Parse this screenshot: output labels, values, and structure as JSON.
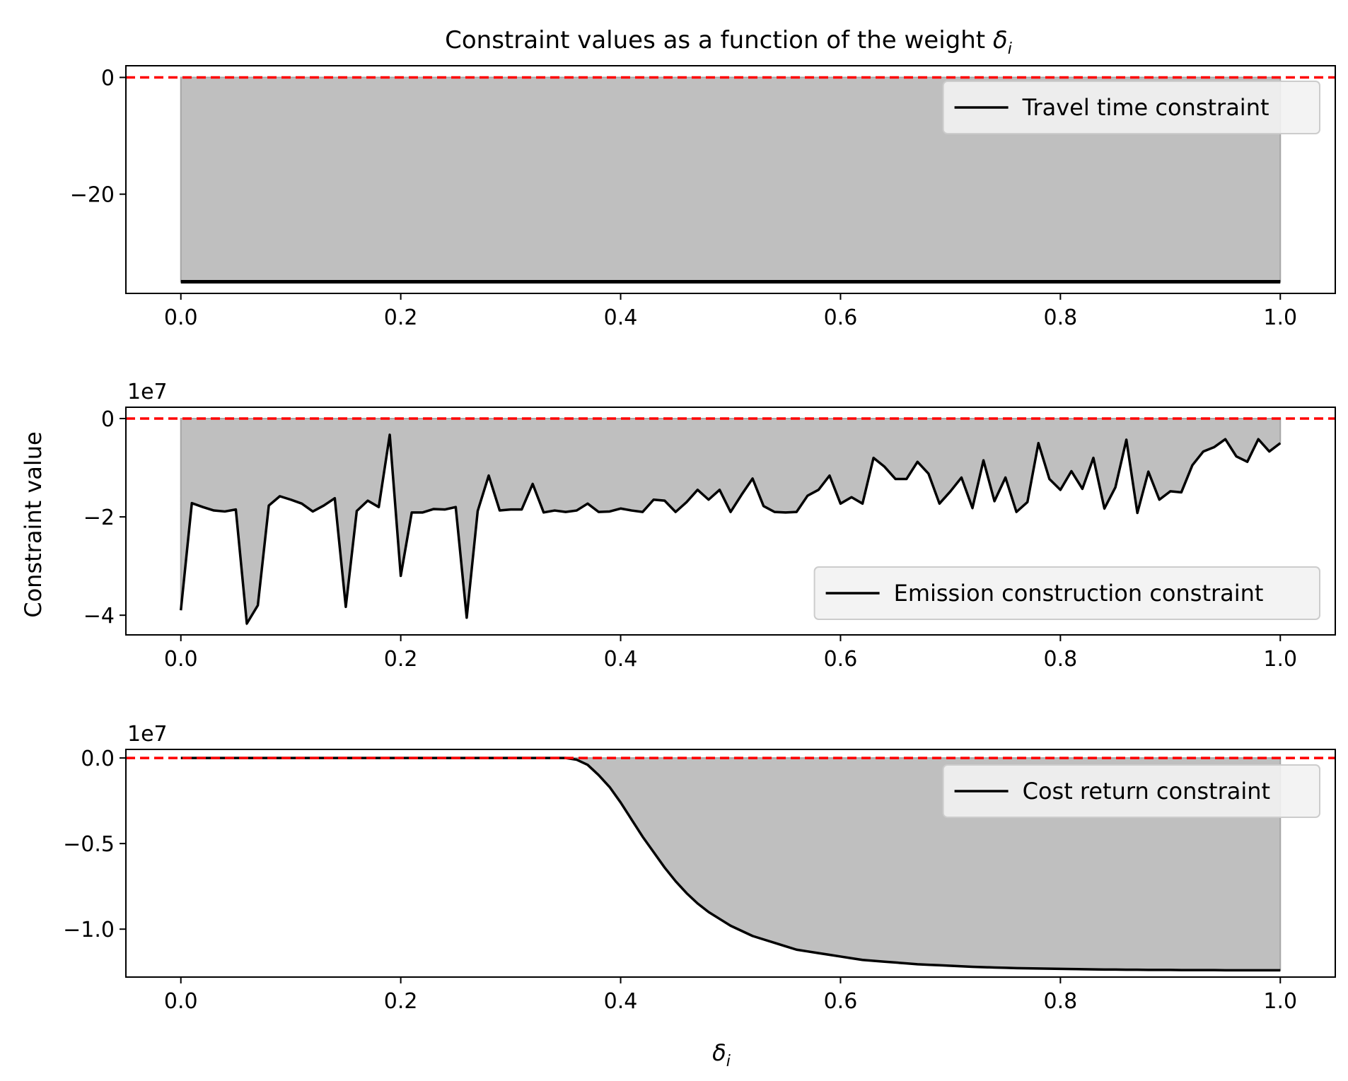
{
  "figure": {
    "title": "Constraint values as a function of the weight δi",
    "title_main": "Constraint values as a function of the weight ",
    "title_symbol": "δ",
    "title_subscript": "i",
    "ylabel": "Constraint value",
    "xlabel_symbol": "δ",
    "xlabel_subscript": "i"
  },
  "colors": {
    "line": "#000000",
    "fill": "#bfbfbf",
    "threshold": "#ff0000",
    "legend_bg": "#f2f2f2",
    "legend_border": "#cccccc"
  },
  "chart_data": [
    {
      "type": "line",
      "name": "Travel time constraint",
      "legend": "Travel time constraint",
      "legend_loc": "upper right",
      "fill_to_zero": true,
      "threshold_line": 0,
      "threshold_style": "dashed red",
      "xlim": [
        -0.05,
        1.05
      ],
      "ylim": [
        -37,
        2
      ],
      "xticks": [
        0.0,
        0.2,
        0.4,
        0.6,
        0.8,
        1.0
      ],
      "xtick_labels": [
        "0.0",
        "0.2",
        "0.4",
        "0.6",
        "0.8",
        "1.0"
      ],
      "yticks": [
        0,
        -20
      ],
      "ytick_labels": [
        "0",
        "−20"
      ],
      "offset_text": "",
      "x_start": 0.0,
      "x_step": 0.01,
      "values": [
        -35,
        -35,
        -35,
        -35,
        -35,
        -35,
        -35,
        -35,
        -35,
        -35,
        -35,
        -35,
        -35,
        -35,
        -35,
        -35,
        -35,
        -35,
        -35,
        -35,
        -35,
        -35,
        -35,
        -35,
        -35,
        -35,
        -35,
        -35,
        -35,
        -35,
        -35,
        -35,
        -35,
        -35,
        -35,
        -35,
        -35,
        -35,
        -35,
        -35,
        -35,
        -35,
        -35,
        -35,
        -35,
        -35,
        -35,
        -35,
        -35,
        -35,
        -35,
        -35,
        -35,
        -35,
        -35,
        -35,
        -35,
        -35,
        -35,
        -35,
        -35,
        -35,
        -35,
        -35,
        -35,
        -35,
        -35,
        -35,
        -35,
        -35,
        -35,
        -35,
        -35,
        -35,
        -35,
        -35,
        -35,
        -35,
        -35,
        -35,
        -35,
        -35,
        -35,
        -35,
        -35,
        -35,
        -35,
        -35,
        -35,
        -35,
        -35,
        -35,
        -35,
        -35,
        -35,
        -35,
        -35,
        -35,
        -35,
        -35,
        -35
      ],
      "grid": false
    },
    {
      "type": "line",
      "name": "Emission construction constraint",
      "legend": "Emission construction constraint",
      "legend_loc": "lower right",
      "fill_to_zero": true,
      "threshold_line": 0,
      "threshold_style": "dashed red",
      "xlim": [
        -0.05,
        1.05
      ],
      "ylim": [
        -4.4,
        0.23
      ],
      "xticks": [
        0.0,
        0.2,
        0.4,
        0.6,
        0.8,
        1.0
      ],
      "xtick_labels": [
        "0.0",
        "0.2",
        "0.4",
        "0.6",
        "0.8",
        "1.0"
      ],
      "yticks": [
        0,
        -2,
        -4
      ],
      "ytick_labels": [
        "0",
        "−2",
        "−4"
      ],
      "offset_text": "1e7",
      "x_start": 0.0,
      "x_step": 0.01,
      "values": [
        -3.9,
        -1.72,
        -1.8,
        -1.87,
        -1.89,
        -1.85,
        -4.17,
        -3.8,
        -1.77,
        -1.58,
        -1.65,
        -1.73,
        -1.89,
        -1.77,
        -1.62,
        -3.83,
        -1.88,
        -1.67,
        -1.8,
        -0.33,
        -3.2,
        -1.91,
        -1.91,
        -1.84,
        -1.85,
        -1.8,
        -4.05,
        -1.88,
        -1.16,
        -1.87,
        -1.85,
        -1.85,
        -1.33,
        -1.91,
        -1.87,
        -1.9,
        -1.87,
        -1.73,
        -1.9,
        -1.89,
        -1.83,
        -1.87,
        -1.9,
        -1.65,
        -1.67,
        -1.9,
        -1.7,
        -1.45,
        -1.65,
        -1.45,
        -1.9,
        -1.55,
        -1.22,
        -1.78,
        -1.9,
        -1.91,
        -1.9,
        -1.57,
        -1.45,
        -1.16,
        -1.73,
        -1.6,
        -1.73,
        -0.8,
        -0.98,
        -1.23,
        -1.23,
        -0.88,
        -1.12,
        -1.73,
        -1.48,
        -1.2,
        -1.82,
        -0.85,
        -1.68,
        -1.2,
        -1.9,
        -1.7,
        -0.5,
        -1.23,
        -1.45,
        -1.07,
        -1.43,
        -0.8,
        -1.83,
        -1.4,
        -0.43,
        -1.92,
        -1.08,
        -1.65,
        -1.48,
        -1.5,
        -0.95,
        -0.67,
        -0.58,
        -0.42,
        -0.77,
        -0.88,
        -0.42,
        -0.67,
        -0.5
      ],
      "grid": false
    },
    {
      "type": "line",
      "name": "Cost return constraint",
      "legend": "Cost return constraint",
      "legend_loc": "upper right",
      "fill_to_zero": true,
      "threshold_line": 0,
      "threshold_style": "dashed red",
      "xlim": [
        -0.05,
        1.05
      ],
      "ylim": [
        -1.28,
        0.05
      ],
      "xticks": [
        0.0,
        0.2,
        0.4,
        0.6,
        0.8,
        1.0
      ],
      "xtick_labels": [
        "0.0",
        "0.2",
        "0.4",
        "0.6",
        "0.8",
        "1.0"
      ],
      "yticks": [
        0.0,
        -0.5,
        -1.0
      ],
      "ytick_labels": [
        "0.0",
        "−0.5",
        "−1.0"
      ],
      "offset_text": "1e7",
      "x_start": 0.0,
      "x_step": 0.01,
      "values": [
        0,
        0,
        0,
        0,
        0,
        0,
        0,
        0,
        0,
        0,
        0,
        0,
        0,
        0,
        0,
        0,
        0,
        0,
        0,
        0,
        0,
        0,
        0,
        0,
        0,
        0,
        0,
        0,
        0,
        0,
        0,
        0,
        0,
        0,
        0,
        0,
        -0.01,
        -0.04,
        -0.1,
        -0.17,
        -0.26,
        -0.36,
        -0.46,
        -0.55,
        -0.64,
        -0.72,
        -0.79,
        -0.85,
        -0.9,
        -0.94,
        -0.98,
        -1.01,
        -1.04,
        -1.06,
        -1.08,
        -1.1,
        -1.12,
        -1.13,
        -1.14,
        -1.15,
        -1.16,
        -1.17,
        -1.18,
        -1.185,
        -1.19,
        -1.195,
        -1.2,
        -1.205,
        -1.208,
        -1.211,
        -1.214,
        -1.217,
        -1.22,
        -1.222,
        -1.224,
        -1.226,
        -1.228,
        -1.229,
        -1.23,
        -1.231,
        -1.232,
        -1.233,
        -1.234,
        -1.235,
        -1.236,
        -1.236,
        -1.237,
        -1.237,
        -1.238,
        -1.238,
        -1.238,
        -1.239,
        -1.239,
        -1.239,
        -1.239,
        -1.24,
        -1.24,
        -1.24,
        -1.24,
        -1.24,
        -1.24
      ],
      "grid": false
    }
  ]
}
